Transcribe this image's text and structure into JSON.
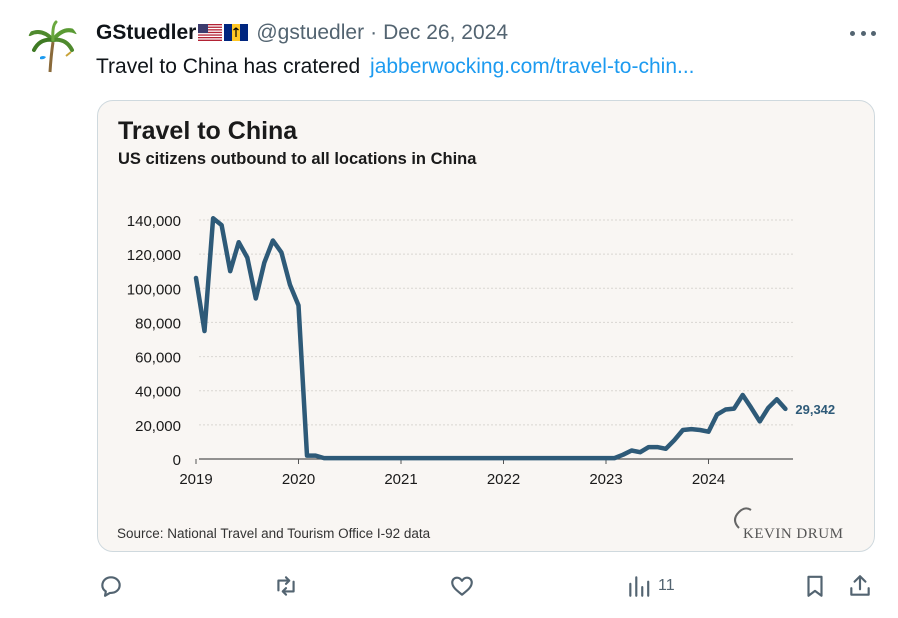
{
  "tweet": {
    "display_name": "GStuedler",
    "handle": "@gstuedler",
    "separator": "·",
    "date": "Dec 26, 2024",
    "text": "Travel to China has cratered",
    "link_text": "jabberwocking.com/travel-to-chin..."
  },
  "chart": {
    "title": "Travel to China",
    "subtitle": "US citizens outbound to all locations in China",
    "source": "Source: National Travel and Tourism Office I-92 data",
    "watermark": "KEVIN DRUM",
    "end_label": "29,342",
    "line_color": "#2e5a78",
    "background_color": "#f9f6f3"
  },
  "chart_data": {
    "type": "line",
    "title": "Travel to China",
    "subtitle": "US citizens outbound to all locations in China",
    "xlabel": "",
    "ylabel": "",
    "x_ticks": [
      "2019",
      "2020",
      "2021",
      "2022",
      "2023",
      "2024"
    ],
    "y_ticks": [
      "0",
      "20,000",
      "40,000",
      "60,000",
      "80,000",
      "100,000",
      "120,000",
      "140,000"
    ],
    "ylim": [
      0,
      140000
    ],
    "grid": true,
    "series": [
      {
        "x": [
          "2019-01",
          "2019-02",
          "2019-03",
          "2019-04",
          "2019-05",
          "2019-06",
          "2019-07",
          "2019-08",
          "2019-09",
          "2019-10",
          "2019-11",
          "2019-12",
          "2020-01",
          "2020-02",
          "2020-03",
          "2020-04",
          "2020-05",
          "2020-06",
          "2020-07",
          "2020-08",
          "2020-09",
          "2020-10",
          "2020-11",
          "2020-12",
          "2021-01",
          "2021-02",
          "2021-03",
          "2021-04",
          "2021-05",
          "2021-06",
          "2021-07",
          "2021-08",
          "2021-09",
          "2021-10",
          "2021-11",
          "2021-12",
          "2022-01",
          "2022-02",
          "2022-03",
          "2022-04",
          "2022-05",
          "2022-06",
          "2022-07",
          "2022-08",
          "2022-09",
          "2022-10",
          "2022-11",
          "2022-12",
          "2023-01",
          "2023-02",
          "2023-03",
          "2023-04",
          "2023-05",
          "2023-06",
          "2023-07",
          "2023-08",
          "2023-09",
          "2023-10",
          "2023-11",
          "2023-12",
          "2024-01",
          "2024-02",
          "2024-03",
          "2024-04",
          "2024-05",
          "2024-06",
          "2024-07",
          "2024-08",
          "2024-09",
          "2024-10"
        ],
        "values": [
          106000,
          75000,
          141000,
          137000,
          110000,
          127000,
          118000,
          94000,
          115000,
          128000,
          121000,
          102000,
          90000,
          2000,
          2000,
          500,
          500,
          500,
          500,
          500,
          500,
          500,
          500,
          500,
          500,
          500,
          500,
          500,
          500,
          500,
          500,
          500,
          500,
          500,
          500,
          500,
          500,
          500,
          500,
          500,
          500,
          500,
          500,
          500,
          500,
          500,
          500,
          500,
          500,
          500,
          2500,
          5000,
          4000,
          7000,
          7000,
          6000,
          11000,
          17000,
          17500,
          17000,
          16000,
          26000,
          29000,
          29500,
          37500,
          30000,
          22000,
          30000,
          35000,
          29342
        ]
      }
    ],
    "annotations": [
      "29,342"
    ]
  },
  "actions": {
    "reply_count": "",
    "retweet_count": "",
    "like_count": "",
    "views_count": "11"
  },
  "colors": {
    "link": "#1d9bf0",
    "secondary_text": "#536471",
    "border": "#cfd9de"
  },
  "icons": [
    "avatar-palm-tree",
    "us-flag-icon",
    "barbados-flag-icon",
    "more-icon",
    "reply-icon",
    "retweet-icon",
    "like-icon",
    "views-icon",
    "bookmark-icon",
    "share-icon"
  ]
}
